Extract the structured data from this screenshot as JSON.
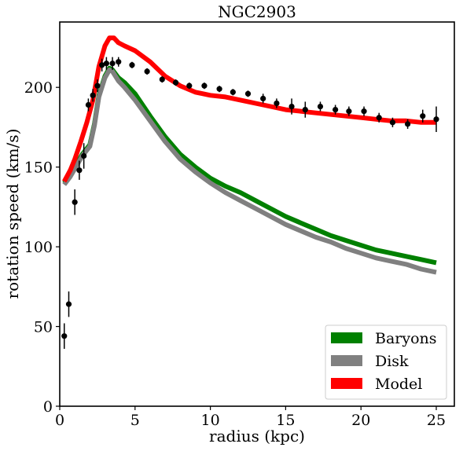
{
  "chart_data": {
    "type": "line",
    "title": "NGC2903",
    "xlabel": "radius (kpc)",
    "ylabel": "rotation speed (km/s)",
    "xlim": [
      0,
      26.2
    ],
    "ylim": [
      0,
      241
    ],
    "xticks": [
      0,
      5,
      10,
      15,
      20,
      25
    ],
    "yticks": [
      0,
      50,
      100,
      150,
      200
    ],
    "xtick_labels": [
      "0",
      "5",
      "10",
      "15",
      "20",
      "25"
    ],
    "ytick_labels": [
      "0",
      "50",
      "100",
      "150",
      "200"
    ],
    "grid": false,
    "legend_position": "lower-right",
    "series": [
      {
        "name": "Baryons",
        "color": "#008000",
        "style": "thick-line",
        "x": [
          0.3,
          0.7,
          1.0,
          1.5,
          2.0,
          2.3,
          2.6,
          3.0,
          3.3,
          3.5,
          3.9,
          4.3,
          5.0,
          6.0,
          7.0,
          8.0,
          9.0,
          10.0,
          11.0,
          12.0,
          13.0,
          14.0,
          15.0,
          16.0,
          17.0,
          18.0,
          19.0,
          20.0,
          21.0,
          22.0,
          23.0,
          24.0,
          25.0
        ],
        "y": [
          140,
          145,
          150,
          158,
          164,
          177,
          195,
          207,
          212,
          211,
          206,
          203,
          196,
          182,
          169,
          158,
          150,
          143,
          138,
          134,
          129,
          124,
          119,
          115,
          111,
          107,
          104,
          101,
          98,
          96,
          94,
          92,
          90
        ]
      },
      {
        "name": "Disk",
        "color": "#808080",
        "style": "thick-line",
        "x": [
          0.3,
          0.7,
          1.0,
          1.5,
          2.0,
          2.3,
          2.6,
          3.0,
          3.3,
          3.5,
          3.9,
          4.3,
          5.0,
          6.0,
          7.0,
          8.0,
          9.0,
          10.0,
          11.0,
          12.0,
          13.0,
          14.0,
          15.0,
          16.0,
          17.0,
          18.0,
          19.0,
          20.0,
          21.0,
          22.0,
          23.0,
          24.0,
          25.0
        ],
        "y": [
          139,
          144,
          149,
          157,
          163,
          176,
          194,
          206,
          211,
          210,
          204,
          200,
          192,
          179,
          166,
          155,
          147,
          140,
          134,
          129,
          124,
          119,
          114,
          110,
          106,
          103,
          99,
          96,
          93,
          91,
          89,
          86,
          84
        ]
      },
      {
        "name": "Model",
        "color": "#ff0000",
        "style": "thick-line",
        "x": [
          0.3,
          0.7,
          1.0,
          1.4,
          1.8,
          2.2,
          2.6,
          3.0,
          3.3,
          3.6,
          3.9,
          4.3,
          5.0,
          6.0,
          7.0,
          8.0,
          9.0,
          10.0,
          11.0,
          12.0,
          13.0,
          14.0,
          15.0,
          16.0,
          17.0,
          18.0,
          19.0,
          20.0,
          21.0,
          22.0,
          23.0,
          24.0,
          25.0
        ],
        "y": [
          141,
          148,
          155,
          166,
          178,
          192,
          213,
          226,
          231,
          231,
          228,
          226,
          223,
          216,
          207,
          201,
          197,
          195,
          194,
          192,
          190,
          188,
          186,
          185,
          184,
          183,
          182,
          181,
          180,
          179,
          179,
          178,
          178
        ]
      },
      {
        "name": "",
        "color": "#000000",
        "style": "errorbar",
        "x": [
          0.3,
          0.6,
          1.0,
          1.3,
          1.6,
          1.9,
          2.2,
          2.5,
          2.8,
          3.1,
          3.5,
          3.9,
          4.8,
          5.8,
          6.8,
          7.7,
          8.6,
          9.6,
          10.6,
          11.5,
          12.5,
          13.5,
          14.4,
          15.4,
          16.3,
          17.3,
          18.3,
          19.2,
          20.2,
          21.2,
          22.1,
          23.1,
          24.1,
          25.0
        ],
        "y": [
          44,
          64,
          128,
          148,
          157,
          189,
          195,
          201,
          214,
          215,
          215,
          216,
          214,
          210,
          205,
          203,
          201,
          201,
          199,
          197,
          196,
          193,
          190,
          188,
          186,
          188,
          186,
          185,
          185,
          181,
          178,
          177,
          182,
          180
        ],
        "yerr": [
          8,
          8,
          8,
          6,
          8,
          4,
          4,
          4,
          4,
          4,
          4,
          3,
          2,
          2,
          2,
          2,
          2,
          2,
          2,
          2,
          2,
          3,
          3,
          5,
          5,
          3,
          3,
          3,
          3,
          3,
          3,
          3,
          4,
          8
        ]
      }
    ]
  }
}
